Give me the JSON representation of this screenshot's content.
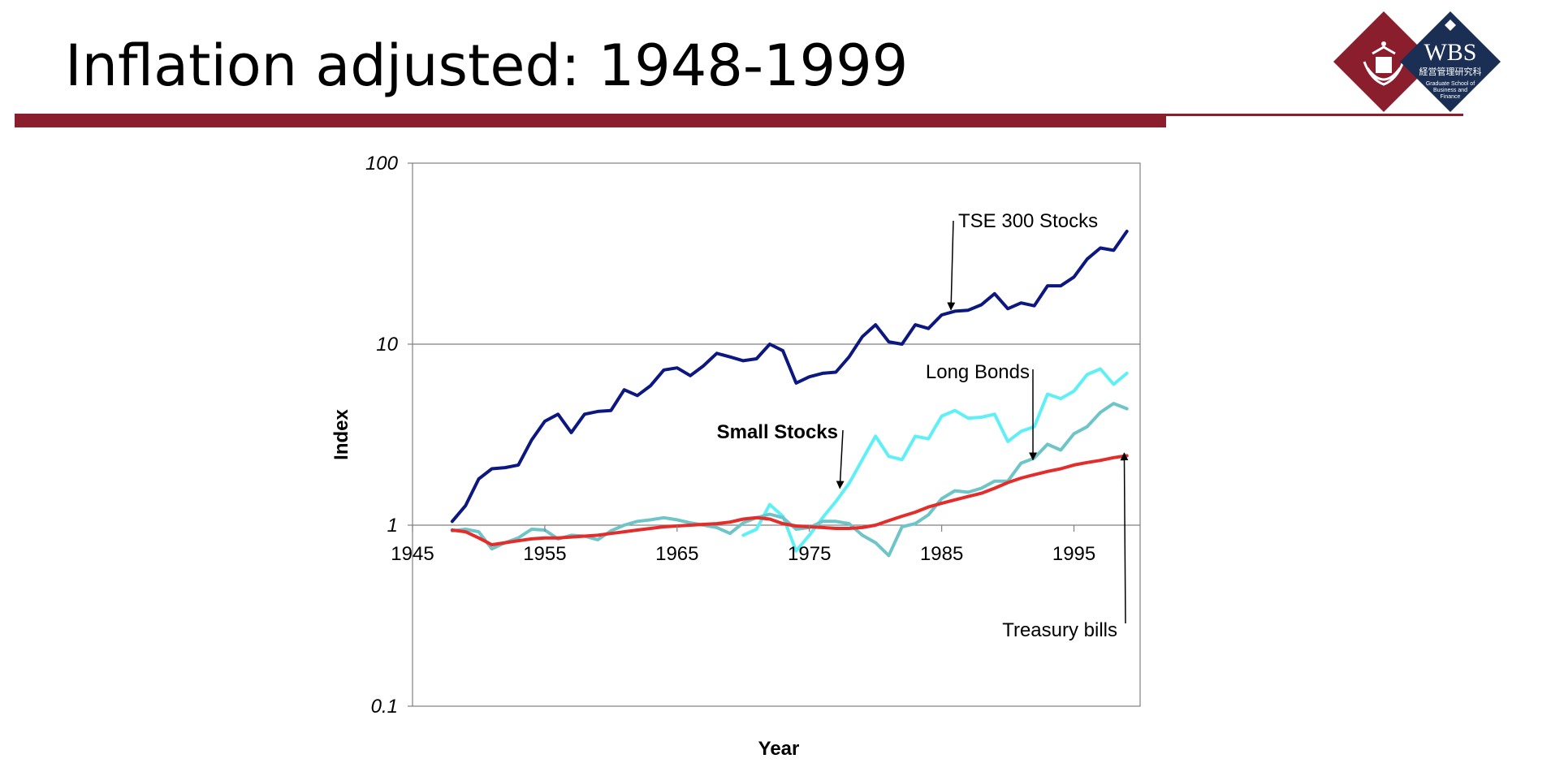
{
  "slide": {
    "title": "Inflation adjusted: 1948-1999",
    "colors": {
      "accent": "#8b1e2d",
      "navy": "#1b2f55"
    }
  },
  "logo": {
    "left_icon": "university-crest-icon",
    "brand": "WBS",
    "jp_name": "経営管理研究科",
    "en_lines": [
      "Graduate School of",
      "Business and",
      "Finance"
    ]
  },
  "chart_data": {
    "type": "line",
    "yscale": "log",
    "xlim": [
      1945,
      2000
    ],
    "ylim": [
      0.1,
      100
    ],
    "xlabel": "Year",
    "ylabel": "Index",
    "xticks": [
      1945,
      1955,
      1965,
      1975,
      1985,
      1995
    ],
    "yticks": [
      0.1,
      1,
      10,
      100
    ],
    "ytick_labels": [
      "0.1",
      "1",
      "10",
      "100"
    ],
    "grid": "horizontal",
    "x": [
      1948,
      1949,
      1950,
      1951,
      1952,
      1953,
      1954,
      1955,
      1956,
      1957,
      1958,
      1959,
      1960,
      1961,
      1962,
      1963,
      1964,
      1965,
      1966,
      1967,
      1968,
      1969,
      1970,
      1971,
      1972,
      1973,
      1974,
      1975,
      1976,
      1977,
      1978,
      1979,
      1980,
      1981,
      1982,
      1983,
      1984,
      1985,
      1986,
      1987,
      1988,
      1989,
      1990,
      1991,
      1992,
      1993,
      1994,
      1995,
      1996,
      1997,
      1998,
      1999
    ],
    "series": [
      {
        "name": "TSE 300 Stocks",
        "color": "#0c1780",
        "values": [
          1.05,
          1.28,
          1.8,
          2.05,
          2.08,
          2.15,
          2.95,
          3.75,
          4.1,
          3.25,
          4.1,
          4.25,
          4.3,
          5.6,
          5.2,
          5.9,
          7.2,
          7.4,
          6.7,
          7.6,
          8.9,
          8.5,
          8.1,
          8.3,
          10.0,
          9.2,
          6.1,
          6.6,
          6.9,
          7.0,
          8.5,
          11.0,
          12.8,
          10.3,
          10.0,
          12.8,
          12.2,
          14.5,
          15.2,
          15.4,
          16.5,
          19.0,
          15.7,
          16.9,
          16.3,
          21.0,
          21.0,
          23.5,
          29.5,
          34.0,
          33.0,
          42.0
        ]
      },
      {
        "name": "Small Stocks",
        "color": "#5ff0f7",
        "values": [
          null,
          null,
          null,
          null,
          null,
          null,
          null,
          null,
          null,
          null,
          null,
          null,
          null,
          null,
          null,
          null,
          null,
          null,
          null,
          null,
          null,
          null,
          0.88,
          0.95,
          1.3,
          1.12,
          0.72,
          0.88,
          1.1,
          1.35,
          1.7,
          2.3,
          3.1,
          2.4,
          2.3,
          3.1,
          3.0,
          4.0,
          4.3,
          3.9,
          3.95,
          4.1,
          2.9,
          3.3,
          3.5,
          5.3,
          5.0,
          5.5,
          6.8,
          7.3,
          6.0,
          6.9
        ]
      },
      {
        "name": "Long Bonds",
        "color": "#6ec5c8",
        "values": [
          0.93,
          0.95,
          0.92,
          0.74,
          0.8,
          0.85,
          0.95,
          0.94,
          0.84,
          0.88,
          0.87,
          0.83,
          0.93,
          1.0,
          1.05,
          1.07,
          1.1,
          1.07,
          1.03,
          1.0,
          0.97,
          0.9,
          1.03,
          1.1,
          1.15,
          1.1,
          0.95,
          0.97,
          1.05,
          1.05,
          1.02,
          0.88,
          0.8,
          0.68,
          0.98,
          1.02,
          1.14,
          1.4,
          1.55,
          1.52,
          1.6,
          1.75,
          1.75,
          2.2,
          2.35,
          2.8,
          2.6,
          3.2,
          3.5,
          4.2,
          4.7,
          4.4
        ]
      },
      {
        "name": "Treasury bills",
        "color": "#e42c2a",
        "values": [
          0.94,
          0.92,
          0.85,
          0.78,
          0.8,
          0.82,
          0.84,
          0.85,
          0.85,
          0.86,
          0.87,
          0.88,
          0.9,
          0.92,
          0.94,
          0.96,
          0.98,
          0.99,
          1.0,
          1.01,
          1.02,
          1.04,
          1.08,
          1.1,
          1.08,
          1.02,
          0.99,
          0.98,
          0.97,
          0.96,
          0.96,
          0.97,
          1.0,
          1.06,
          1.12,
          1.18,
          1.26,
          1.32,
          1.38,
          1.44,
          1.5,
          1.6,
          1.72,
          1.82,
          1.9,
          1.98,
          2.05,
          2.15,
          2.22,
          2.28,
          2.36,
          2.42
        ]
      }
    ],
    "annotations": [
      {
        "text": "TSE 300 Stocks",
        "series": "TSE 300 Stocks",
        "arrow_to": [
          1985.7,
          15.5
        ],
        "bold": false
      },
      {
        "text": "Long Bonds",
        "series": "Long Bonds",
        "arrow_to": [
          1991.9,
          2.3
        ],
        "bold": false
      },
      {
        "text": "Small Stocks",
        "series": "Small Stocks",
        "arrow_to": [
          1977.3,
          1.6
        ],
        "bold": true
      },
      {
        "text": "Treasury bills",
        "series": "Treasury bills",
        "arrow_to": [
          1998.8,
          2.5
        ],
        "bold": false
      }
    ]
  }
}
